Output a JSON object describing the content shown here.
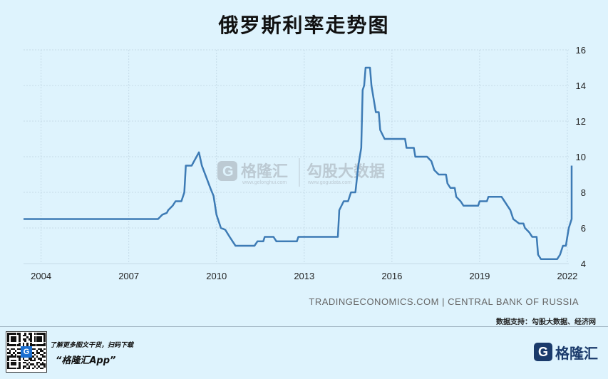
{
  "title": "俄罗斯利率走势图",
  "source_text": "TRADINGECONOMICS.COM | CENTRAL BANK OF RUSSIA",
  "support_text": "数据支持：勾股大数据、经济网",
  "watermark": {
    "gelonghui_name": "格隆汇",
    "gelonghui_url": "www.gelonghui.com",
    "gogudata_name": "勾股大数据",
    "gogudata_url": "www.gogudata.com"
  },
  "footer": {
    "promo_line1": "了解更多图文干货，扫码下载",
    "promo_line2": "“格隆汇App”",
    "brand_name": "格隆汇",
    "brand_mark": "G",
    "qr_logo": "G"
  },
  "colors": {
    "line": "#3d7bb5",
    "background": "#def3fd",
    "grid": "#c5dbe8"
  },
  "chart_data": {
    "type": "line",
    "title": "俄罗斯利率走势图",
    "xlabel": "",
    "ylabel": "",
    "xlim": [
      2003.4,
      2022.05
    ],
    "ylim": [
      4,
      16
    ],
    "x_ticks": [
      2004,
      2007,
      2010,
      2013,
      2016,
      2019,
      2022
    ],
    "x_tick_labels": [
      "2004",
      "2007",
      "2010",
      "2013",
      "2016",
      "2019",
      "2022"
    ],
    "y_ticks": [
      4,
      6,
      8,
      10,
      12,
      14,
      16
    ],
    "y_tick_labels": [
      "4",
      "6",
      "8",
      "10",
      "12",
      "14",
      "16"
    ],
    "grid": true,
    "y_axis_side": "right",
    "series": [
      {
        "points": [
          [
            2003.4,
            6.5
          ],
          [
            2008.0,
            6.5
          ],
          [
            2008.15,
            6.75
          ],
          [
            2008.3,
            6.85
          ],
          [
            2008.35,
            7.0
          ],
          [
            2008.5,
            7.25
          ],
          [
            2008.6,
            7.5
          ],
          [
            2008.8,
            7.5
          ],
          [
            2008.9,
            8.0
          ],
          [
            2008.95,
            9.5
          ],
          [
            2009.15,
            9.5
          ],
          [
            2009.4,
            10.25
          ],
          [
            2009.5,
            9.5
          ],
          [
            2009.65,
            8.85
          ],
          [
            2009.8,
            8.2
          ],
          [
            2009.9,
            7.8
          ],
          [
            2010.0,
            6.75
          ],
          [
            2010.15,
            6.0
          ],
          [
            2010.3,
            5.9
          ],
          [
            2010.45,
            5.5
          ],
          [
            2010.55,
            5.25
          ],
          [
            2010.65,
            5.0
          ],
          [
            2011.3,
            5.0
          ],
          [
            2011.4,
            5.25
          ],
          [
            2011.6,
            5.25
          ],
          [
            2011.65,
            5.5
          ],
          [
            2011.95,
            5.5
          ],
          [
            2012.05,
            5.25
          ],
          [
            2012.75,
            5.25
          ],
          [
            2012.8,
            5.5
          ],
          [
            2014.15,
            5.5
          ],
          [
            2014.2,
            7.0
          ],
          [
            2014.35,
            7.5
          ],
          [
            2014.5,
            7.5
          ],
          [
            2014.6,
            8.0
          ],
          [
            2014.75,
            8.0
          ],
          [
            2014.85,
            9.5
          ],
          [
            2014.95,
            10.5
          ],
          [
            2015.0,
            13.75
          ],
          [
            2015.05,
            14.0
          ],
          [
            2015.1,
            15.0
          ],
          [
            2015.25,
            15.0
          ],
          [
            2015.3,
            14.0
          ],
          [
            2015.45,
            12.5
          ],
          [
            2015.55,
            12.5
          ],
          [
            2015.6,
            11.5
          ],
          [
            2015.75,
            11.0
          ],
          [
            2016.45,
            11.0
          ],
          [
            2016.5,
            10.5
          ],
          [
            2016.75,
            10.5
          ],
          [
            2016.8,
            10.0
          ],
          [
            2017.2,
            10.0
          ],
          [
            2017.35,
            9.75
          ],
          [
            2017.45,
            9.25
          ],
          [
            2017.6,
            9.0
          ],
          [
            2017.85,
            9.0
          ],
          [
            2017.9,
            8.5
          ],
          [
            2018.0,
            8.25
          ],
          [
            2018.15,
            8.25
          ],
          [
            2018.2,
            7.75
          ],
          [
            2018.35,
            7.5
          ],
          [
            2018.45,
            7.25
          ],
          [
            2018.95,
            7.25
          ],
          [
            2019.0,
            7.5
          ],
          [
            2019.25,
            7.5
          ],
          [
            2019.3,
            7.75
          ],
          [
            2019.75,
            7.75
          ],
          [
            2019.85,
            7.5
          ],
          [
            2019.95,
            7.25
          ],
          [
            2020.05,
            7.0
          ],
          [
            2020.15,
            6.5
          ],
          [
            2020.35,
            6.25
          ],
          [
            2020.5,
            6.25
          ],
          [
            2020.55,
            6.0
          ],
          [
            2020.7,
            5.75
          ],
          [
            2020.8,
            5.5
          ],
          [
            2020.95,
            5.5
          ],
          [
            2021.0,
            4.5
          ],
          [
            2021.1,
            4.25
          ],
          [
            2021.65,
            4.25
          ],
          [
            2021.75,
            4.5
          ],
          [
            2021.85,
            5.0
          ],
          [
            2021.95,
            5.0
          ],
          [
            2022.0,
            5.5
          ],
          [
            2022.05,
            6.0
          ],
          [
            2022.15,
            6.5
          ],
          [
            2022.3,
            6.75
          ],
          [
            2022.4,
            7.25
          ],
          [
            2022.55,
            7.5
          ],
          [
            2022.65,
            7.5
          ],
          [
            2022.7,
            8.5
          ],
          [
            2022.85,
            8.5
          ],
          [
            2022.9,
            9.5
          ]
        ]
      }
    ]
  }
}
